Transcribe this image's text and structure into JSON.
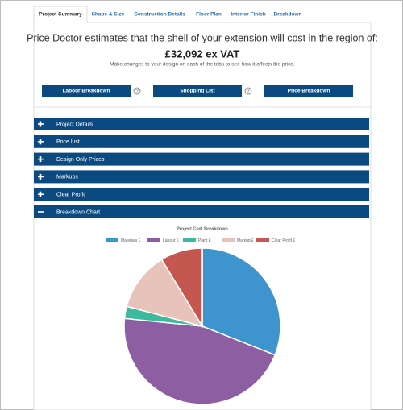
{
  "tabs": [
    "Project Summary",
    "Shape & Size",
    "Construction Details",
    "Floor Plan",
    "Interior Finish",
    "Breakdown"
  ],
  "summary": {
    "headline": "Price Doctor estimates that the shell of your extension will cost in the region of:",
    "price": "£32,092 ex VAT",
    "note": "Make changes to your design on each of the tabs to see how it affects the price."
  },
  "buttons": [
    {
      "label": "Labour Breakdown",
      "help": "?"
    },
    {
      "label": "Shopping List",
      "help": "?"
    },
    {
      "label": "Price Breakdown"
    }
  ],
  "sections": [
    "Project Details",
    "Price List",
    "Design Only Prices",
    "Markups",
    "Clear Profit",
    "Breakdown Chart"
  ],
  "chart_data": {
    "type": "pie",
    "title": "Project Cost Breakdown",
    "categories": [
      "Materials £",
      "Labour £",
      "Plant £",
      "Markup £",
      "Clear Profit £"
    ],
    "values": [
      31,
      45.6,
      2.5,
      12.2,
      8.7
    ],
    "colors": [
      "#3e95cd",
      "#8e5ea2",
      "#3cba9f",
      "#e8c3b9",
      "#c45850"
    ]
  }
}
